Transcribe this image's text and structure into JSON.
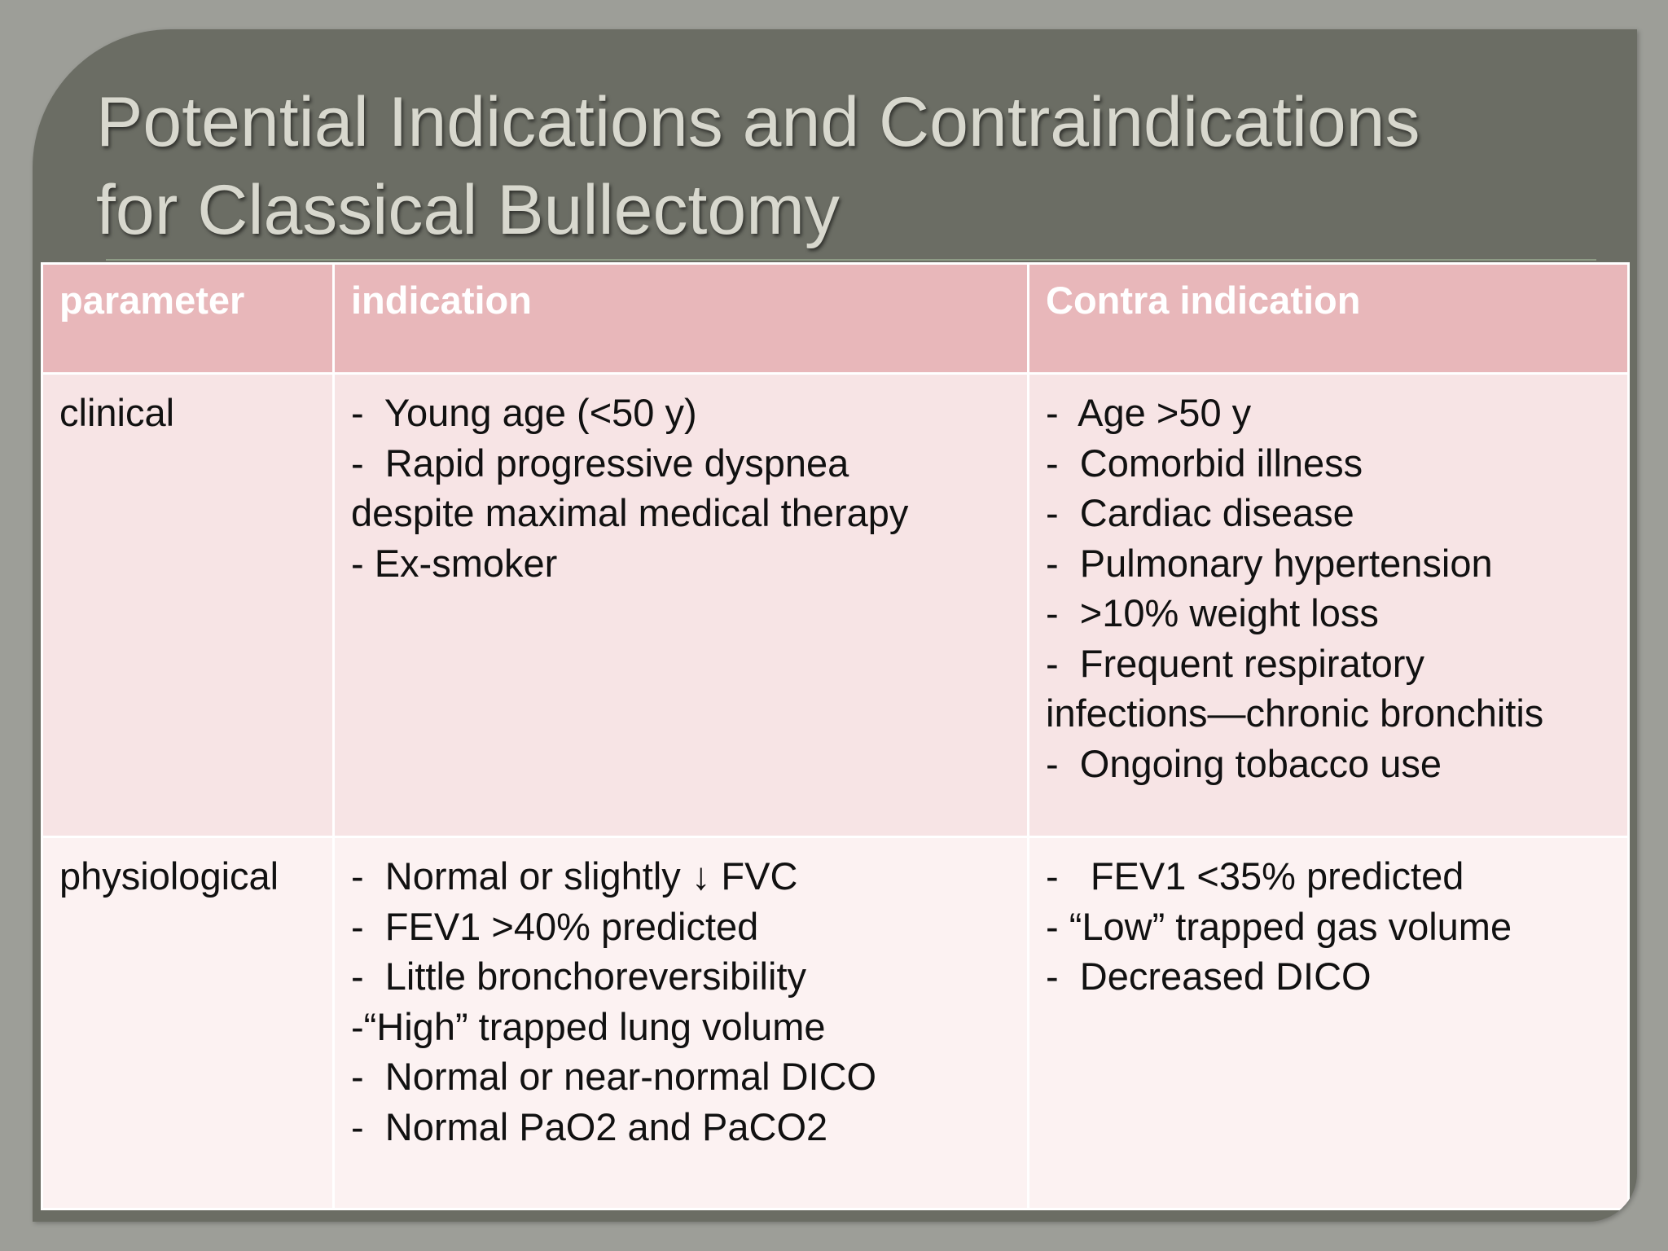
{
  "title": {
    "line1": "Potential Indications and Contraindications",
    "line2": "for Classical Bullectomy"
  },
  "table": {
    "headers": [
      "parameter",
      "indication",
      "Contra indication"
    ],
    "rows": [
      {
        "parameter": "clinical",
        "indication": [
          "-  Young age (<50 y)",
          "-  Rapid progressive dyspnea",
          "despite maximal medical therapy",
          "- Ex-smoker"
        ],
        "contra": [
          "-  Age >50 y",
          "-  Comorbid illness",
          "-  Cardiac disease",
          "-  Pulmonary hypertension",
          "-  >10% weight loss",
          "-  Frequent respiratory",
          "infections—chronic bronchitis",
          "-  Ongoing tobacco use"
        ]
      },
      {
        "parameter": "physiological",
        "indication": [
          "-  Normal or slightly ↓ FVC",
          "-  FEV1 >40% predicted",
          "-  Little bronchoreversibility",
          "-“High” trapped lung volume",
          "-  Normal or near-normal DICO",
          "-  Normal PaO2 and PaCO2"
        ],
        "contra": [
          "-   FEV1 <35% predicted",
          "- “Low” trapped gas volume",
          "-  Decreased DICO"
        ]
      }
    ]
  },
  "colors": {
    "background": "#9d9e98",
    "slide": "#6b6d64",
    "header_row": "#e8b7ba",
    "row1": "#f7e4e5",
    "row2": "#fcf2f2"
  }
}
